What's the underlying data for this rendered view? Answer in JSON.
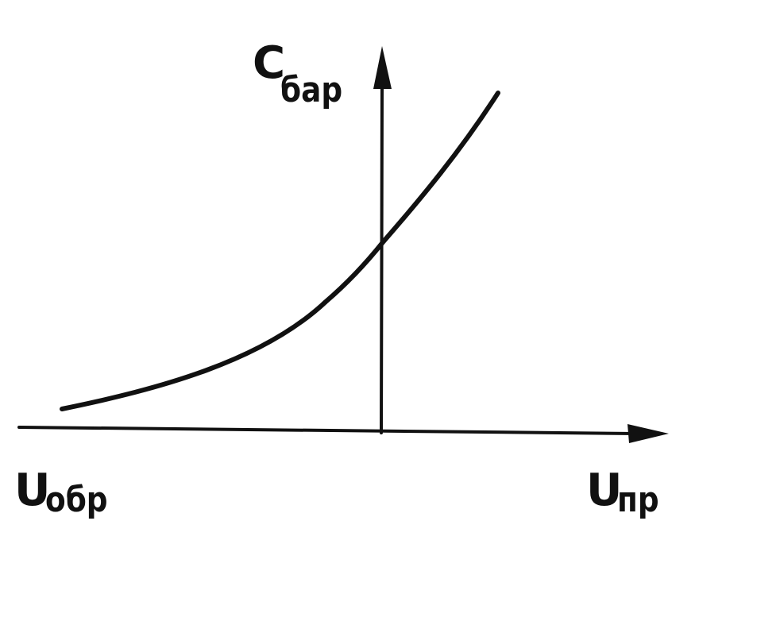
{
  "axes": {
    "y_label": {
      "symbol": "C",
      "subscript": "бар"
    },
    "x_negative_label": {
      "symbol": "U",
      "subscript": "обр"
    },
    "x_positive_label": {
      "symbol": "U",
      "subscript": "пр"
    }
  },
  "colors": {
    "ink": "#111111",
    "background": "#ffffff"
  }
}
